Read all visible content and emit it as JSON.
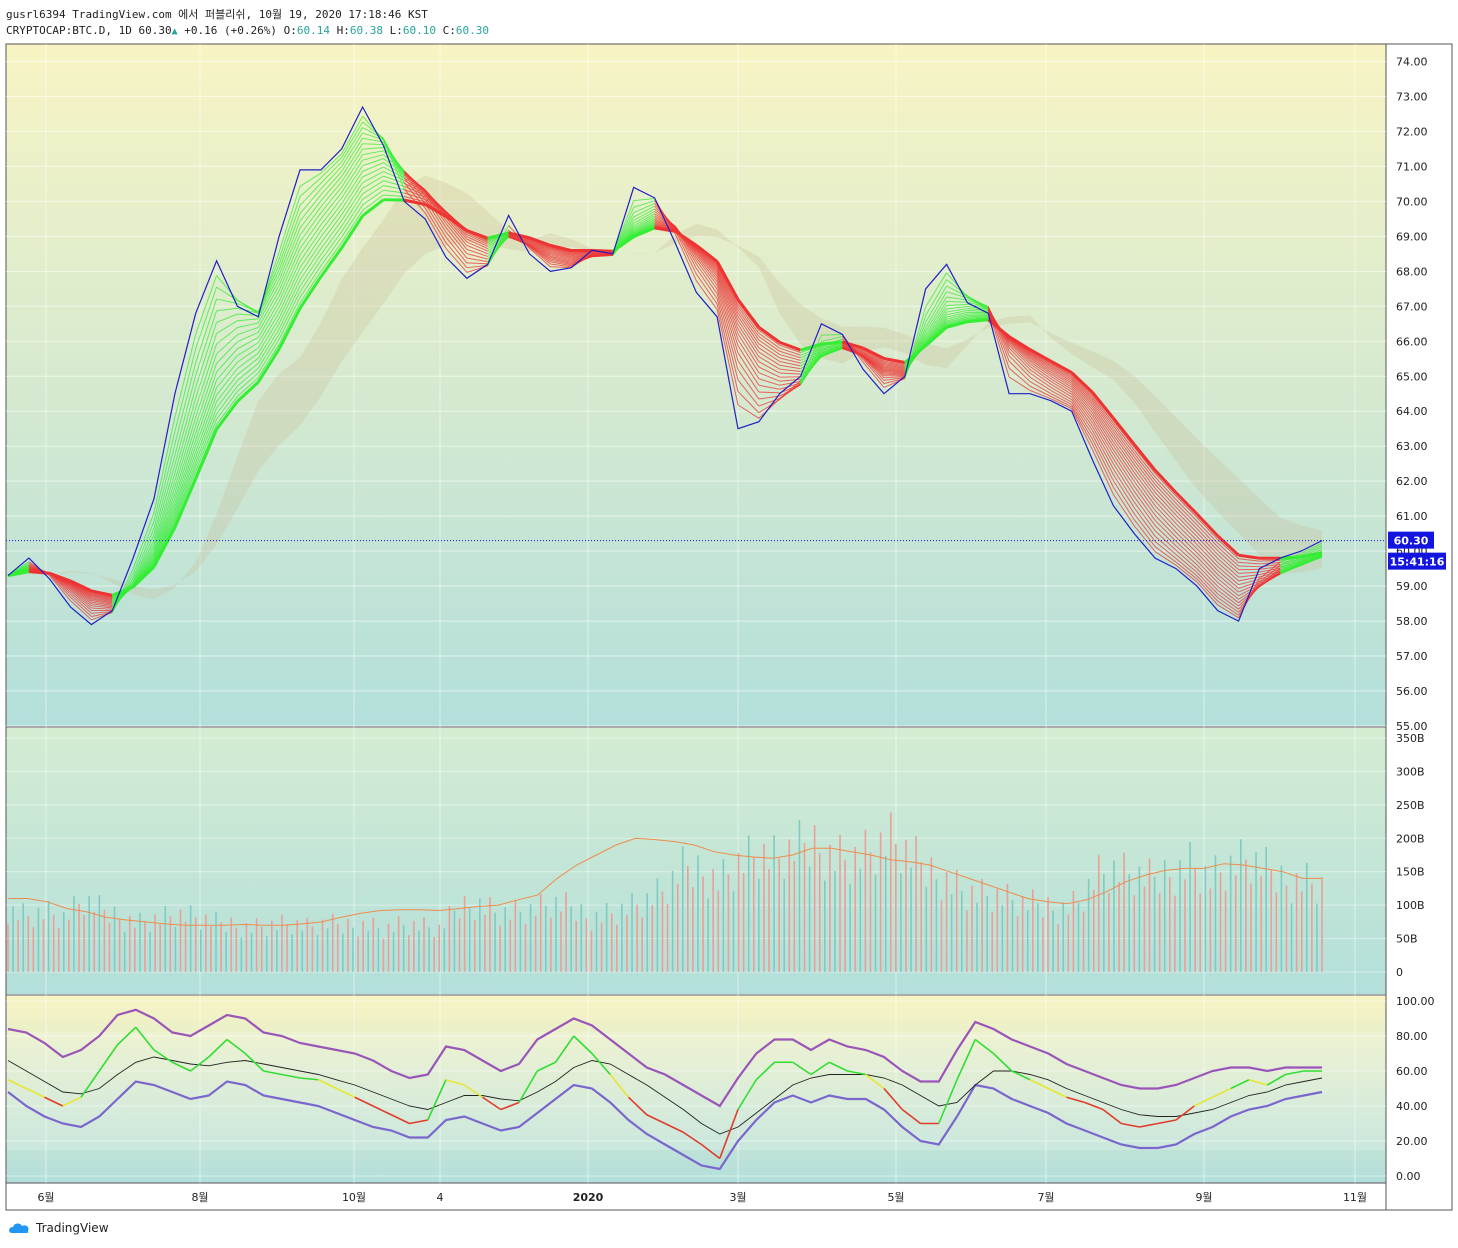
{
  "header": {
    "line1": "gusrl6394 TradingView.com 에서 퍼블리쉬, 10월 19, 2020 17:18:46 KST",
    "symbol": "CRYPTOCAP:BTC.D, 1D",
    "last": "60.30",
    "change": "+0.16 (+0.26%)",
    "o_label": "O:",
    "o": "60.14",
    "h_label": "H:",
    "h": "60.38",
    "l_label": "L:",
    "l": "60.10",
    "c_label": "C:",
    "c": "60.30"
  },
  "price_badge": "60.30",
  "countdown_badge": "15:41:16",
  "brand": "TradingView",
  "colors": {
    "bg_top": "#f8f4c4",
    "bg_bottom": "#b3dfdb",
    "price_line": "#1f1fc4",
    "ribbon_green": "#33ee33",
    "ribbon_red": "#ee3333",
    "volume_ma": "#ee8c4c",
    "rsi_band": "#9a55b8",
    "badge": "#1414e0"
  },
  "chart_data": [
    {
      "type": "line",
      "panel": "price",
      "ylim": [
        55,
        74.5
      ],
      "y_ticks": [
        "74.00",
        "73.00",
        "72.00",
        "71.00",
        "70.00",
        "69.00",
        "68.00",
        "67.00",
        "66.00",
        "65.00",
        "64.00",
        "63.00",
        "62.00",
        "61.00",
        "60.00",
        "59.00",
        "58.00",
        "57.00",
        "56.00",
        "55.00"
      ],
      "x_labels": [
        "6월",
        "8월",
        "10월",
        "4",
        "2020",
        "3월",
        "5월",
        "7월",
        "9월",
        "11월"
      ],
      "series": [
        {
          "values": [
            59.3,
            59.8,
            59.2,
            58.4,
            57.9,
            58.3,
            59.8,
            61.5,
            64.5,
            66.8,
            68.3,
            67.0,
            66.7,
            69.0,
            70.9,
            70.9,
            71.5,
            72.7,
            71.6,
            70.0,
            69.5,
            68.4,
            67.8,
            68.2,
            69.6,
            68.5,
            68.0,
            68.1,
            68.6,
            68.5,
            70.4,
            70.1,
            68.8,
            67.4,
            66.7,
            63.5,
            63.7,
            64.5,
            65.0,
            66.5,
            66.2,
            65.2,
            64.5,
            65.0,
            67.5,
            68.2,
            67.1,
            66.8,
            64.5,
            64.5,
            64.3,
            64.0,
            62.6,
            61.3,
            60.5,
            59.8,
            59.5,
            59.0,
            58.3,
            58.0,
            59.5,
            59.8,
            60.0,
            60.3
          ]
        }
      ]
    },
    {
      "type": "bar",
      "panel": "volume",
      "ylim": [
        0,
        350
      ],
      "y_ticks": [
        "350B",
        "300B",
        "250B",
        "200B",
        "150B",
        "100B",
        "50B",
        "0"
      ],
      "series": [
        {
          "name": "volume",
          "values": [
            95,
            85,
            90,
            80,
            105,
            90,
            82,
            75,
            80,
            85,
            80,
            72,
            70,
            68,
            70,
            72,
            66,
            70,
            68,
            72,
            65,
            70,
            68,
            62,
            95,
            105,
            90,
            88,
            92,
            100,
            94,
            82,
            88,
            96,
            105,
            120,
            152,
            150,
            140,
            165,
            175,
            165,
            180,
            190,
            175,
            170,
            180,
            195,
            170,
            150,
            140,
            120,
            115,
            110,
            100,
            98,
            95,
            105,
            145,
            150,
            140,
            135,
            150,
            165,
            140,
            155,
            165,
            150,
            135,
            140,
            130
          ]
        },
        {
          "name": "ma",
          "values": [
            110,
            110,
            105,
            95,
            90,
            82,
            78,
            75,
            72,
            70,
            70,
            70,
            71,
            70,
            70,
            72,
            75,
            82,
            88,
            92,
            93,
            93,
            92,
            95,
            98,
            100,
            108,
            115,
            140,
            160,
            175,
            190,
            200,
            198,
            195,
            190,
            180,
            175,
            172,
            170,
            175,
            185,
            185,
            180,
            175,
            168,
            165,
            160,
            150,
            140,
            130,
            120,
            110,
            105,
            102,
            108,
            120,
            135,
            145,
            152,
            155,
            155,
            162,
            160,
            155,
            150,
            140,
            140
          ]
        }
      ]
    },
    {
      "type": "line",
      "panel": "rsi",
      "ylim": [
        0,
        100
      ],
      "y_ticks": [
        "100.00",
        "80.00",
        "60.00",
        "40.00",
        "20.00",
        "0.00"
      ],
      "series": [
        {
          "name": "rsi",
          "values": [
            55,
            50,
            45,
            40,
            45,
            60,
            75,
            85,
            72,
            65,
            60,
            68,
            78,
            70,
            60,
            58,
            56,
            55,
            50,
            45,
            40,
            35,
            30,
            32,
            55,
            52,
            45,
            38,
            42,
            60,
            65,
            80,
            70,
            58,
            45,
            35,
            30,
            25,
            18,
            10,
            38,
            55,
            65,
            65,
            58,
            65,
            60,
            58,
            50,
            38,
            30,
            30,
            55,
            78,
            70,
            60,
            55,
            50,
            45,
            42,
            38,
            30,
            28,
            30,
            32,
            40,
            45,
            50,
            55,
            52,
            58,
            60,
            60
          ]
        },
        {
          "name": "rsi_ma",
          "values": [
            66,
            60,
            54,
            48,
            47,
            50,
            58,
            65,
            68,
            66,
            64,
            63,
            65,
            66,
            64,
            62,
            60,
            58,
            55,
            52,
            48,
            44,
            40,
            38,
            42,
            46,
            46,
            44,
            43,
            48,
            54,
            62,
            66,
            64,
            58,
            52,
            45,
            38,
            30,
            24,
            28,
            36,
            44,
            52,
            56,
            58,
            58,
            58,
            56,
            52,
            46,
            40,
            42,
            52,
            60,
            60,
            58,
            55,
            50,
            46,
            42,
            38,
            35,
            34,
            34,
            36,
            38,
            42,
            46,
            48,
            52,
            54,
            56
          ]
        },
        {
          "name": "upper",
          "values": [
            84,
            82,
            76,
            68,
            72,
            80,
            92,
            95,
            90,
            82,
            80,
            86,
            92,
            90,
            82,
            80,
            76,
            74,
            72,
            70,
            66,
            60,
            56,
            58,
            74,
            72,
            66,
            60,
            64,
            78,
            84,
            90,
            86,
            78,
            70,
            62,
            58,
            52,
            46,
            40,
            56,
            70,
            78,
            78,
            72,
            78,
            74,
            72,
            68,
            60,
            54,
            54,
            72,
            88,
            84,
            78,
            74,
            70,
            64,
            60,
            56,
            52,
            50,
            50,
            52,
            56,
            60,
            62,
            62,
            60,
            62,
            62,
            62
          ]
        },
        {
          "name": "lower",
          "values": [
            48,
            40,
            34,
            30,
            28,
            34,
            44,
            54,
            52,
            48,
            44,
            46,
            54,
            52,
            46,
            44,
            42,
            40,
            36,
            32,
            28,
            26,
            22,
            22,
            32,
            34,
            30,
            26,
            28,
            36,
            44,
            52,
            50,
            42,
            32,
            24,
            18,
            12,
            6,
            4,
            20,
            32,
            42,
            46,
            42,
            46,
            44,
            44,
            38,
            28,
            20,
            18,
            34,
            52,
            50,
            44,
            40,
            36,
            30,
            26,
            22,
            18,
            16,
            16,
            18,
            24,
            28,
            34,
            38,
            40,
            44,
            46,
            48
          ]
        }
      ]
    }
  ]
}
